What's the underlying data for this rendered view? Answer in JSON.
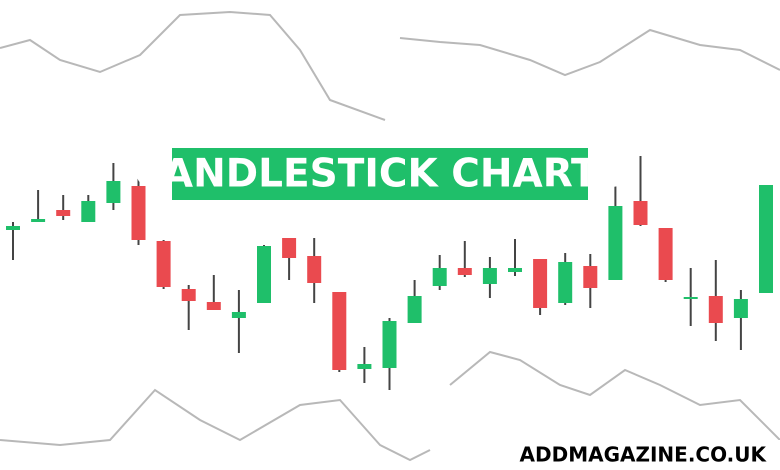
{
  "chart_data": {
    "type": "candlestick",
    "title": "CANDLESTICK CHARTS",
    "watermark": "ADDMAGAZINE.CO.UK",
    "open": [
      240,
      248,
      260,
      248,
      267,
      284,
      229,
      181,
      168,
      152,
      167,
      232,
      214,
      178,
      101,
      102,
      147,
      184,
      202,
      186,
      198,
      211,
      167,
      204,
      190,
      269,
      242,
      172,
      174,
      152,
      177
    ],
    "high": [
      248,
      280,
      275,
      275,
      307,
      297,
      230,
      185,
      195,
      180,
      225,
      232,
      232,
      178,
      123,
      152,
      190,
      215,
      229,
      213,
      231,
      211,
      217,
      216,
      288,
      314,
      242,
      202,
      210,
      180,
      285
    ],
    "low": [
      210,
      248,
      250,
      248,
      260,
      225,
      181,
      140,
      160,
      117,
      167,
      190,
      167,
      98,
      87,
      80,
      147,
      180,
      193,
      172,
      194,
      155,
      165,
      162,
      190,
      244,
      188,
      144,
      129,
      120,
      177
    ],
    "close": [
      244,
      251,
      254,
      269,
      289,
      230,
      183,
      169,
      160,
      158,
      224,
      212,
      187,
      100,
      106,
      149,
      174,
      202,
      195,
      202,
      202,
      162,
      208,
      182,
      264,
      245,
      190,
      173,
      147,
      171,
      285
    ],
    "up_color": "#1fbf6a",
    "down_color": "#ea4a4f",
    "ylim": [
      0,
      470
    ]
  }
}
